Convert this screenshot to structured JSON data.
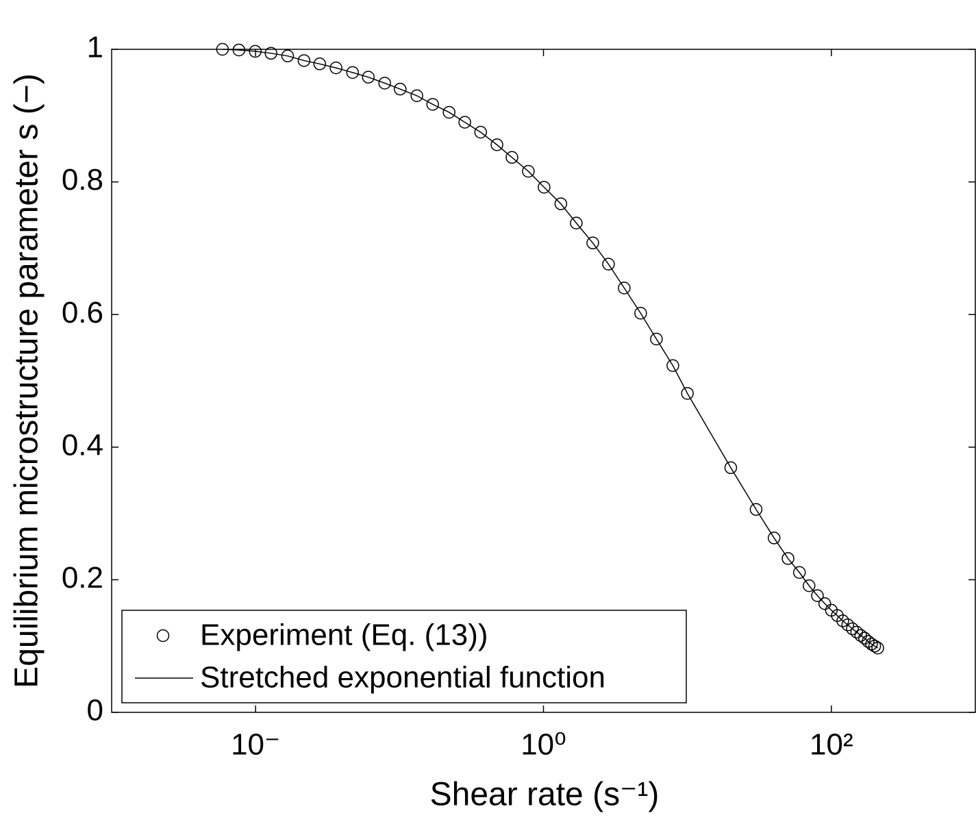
{
  "chart_data": {
    "type": "scatter-line",
    "xlabel": "Shear rate (s⁻¹)",
    "ylabel": "Equilibrium microstructure parameter s (−)",
    "x": [
      0.00589,
      0.00766,
      0.00995,
      0.0128,
      0.0167,
      0.0217,
      0.0279,
      0.0362,
      0.0472,
      0.0607,
      0.0789,
      0.101,
      0.132,
      0.17,
      0.221,
      0.284,
      0.366,
      0.475,
      0.604,
      0.785,
      1.01,
      1.32,
      1.69,
      2.2,
      2.83,
      3.64,
      4.73,
      6.09,
      7.92,
      10,
      20,
      30,
      40,
      50,
      60,
      70,
      80,
      90,
      100,
      110,
      120,
      130,
      140,
      150,
      160,
      170,
      180,
      190,
      200,
      210
    ],
    "series": [
      {
        "name": "Experiment (Eq. (13))",
        "color": "#000000",
        "style": "marker",
        "values": [
          1.0,
          0.999,
          0.997,
          0.994,
          0.99,
          0.983,
          0.978,
          0.972,
          0.965,
          0.958,
          0.949,
          0.94,
          0.93,
          0.917,
          0.905,
          0.89,
          0.875,
          0.856,
          0.837,
          0.816,
          0.792,
          0.767,
          0.738,
          0.708,
          0.676,
          0.64,
          0.602,
          0.563,
          0.523,
          0.481,
          0.369,
          0.306,
          0.263,
          0.232,
          0.211,
          0.191,
          0.176,
          0.164,
          0.154,
          0.146,
          0.138,
          0.132,
          0.126,
          0.121,
          0.116,
          0.112,
          0.107,
          0.103,
          0.1,
          0.097
        ]
      },
      {
        "name": "Stretched exponential function",
        "color": "#000000",
        "style": "line",
        "values": [
          1.0,
          0.999,
          0.997,
          0.994,
          0.99,
          0.983,
          0.978,
          0.972,
          0.965,
          0.958,
          0.949,
          0.94,
          0.93,
          0.917,
          0.905,
          0.89,
          0.875,
          0.856,
          0.837,
          0.816,
          0.792,
          0.767,
          0.738,
          0.708,
          0.676,
          0.64,
          0.602,
          0.563,
          0.523,
          0.481,
          0.369,
          0.306,
          0.263,
          0.232,
          0.211,
          0.191,
          0.176,
          0.164,
          0.154,
          0.146,
          0.138,
          0.132,
          0.126,
          0.121,
          0.116,
          0.112,
          0.107,
          0.103,
          0.1,
          0.097
        ]
      }
    ],
    "log_x": true,
    "xlim": [
      0.001,
      1000
    ],
    "xticks": [
      {
        "value": 0.01,
        "label": "10⁻"
      },
      {
        "value": 1,
        "label": "10⁰"
      },
      {
        "value": 100,
        "label": "10²"
      }
    ],
    "ylim": [
      0,
      1
    ],
    "yticks": [
      0,
      0.2,
      0.4,
      0.6,
      0.8,
      1
    ],
    "legend": "lower left"
  }
}
